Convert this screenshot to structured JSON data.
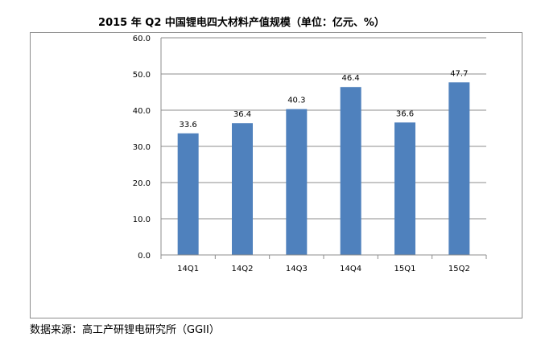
{
  "chart_data": {
    "type": "bar",
    "title": "2015 年 Q2 中国锂电四大材料产值规模（单位：亿元、%）",
    "categories": [
      "14Q1",
      "14Q2",
      "14Q3",
      "14Q4",
      "15Q1",
      "15Q2"
    ],
    "values": [
      33.6,
      36.4,
      40.3,
      46.4,
      36.6,
      47.7
    ],
    "value_labels": [
      "33.6",
      "36.4",
      "40.3",
      "46.4",
      "36.6",
      "47.7"
    ],
    "ylim": [
      0,
      60
    ],
    "yticks": [
      "0.0",
      "10.0",
      "20.0",
      "30.0",
      "40.0",
      "50.0",
      "60.0"
    ],
    "grid": true,
    "legend": "none",
    "bar_color": "#4f81bd",
    "xlabel": "",
    "ylabel": ""
  },
  "footer": {
    "source": "数据来源：高工产研锂电研究所（GGII）"
  }
}
